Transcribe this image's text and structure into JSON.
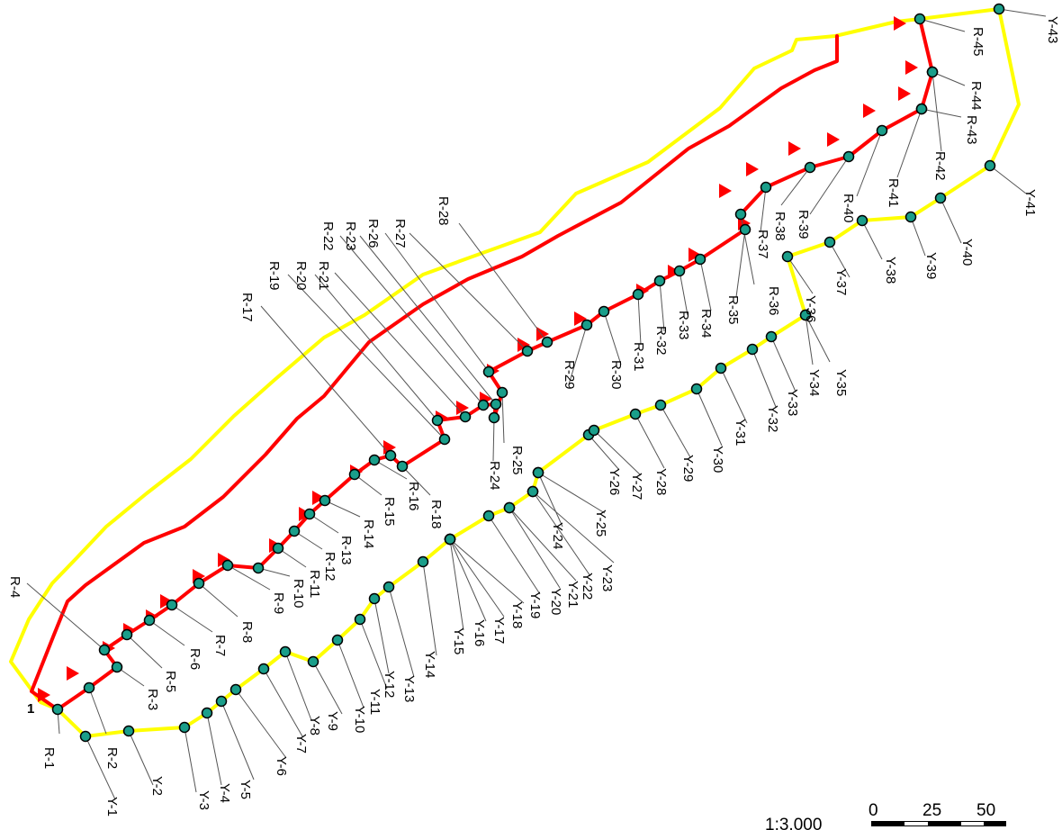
{
  "map": {
    "start_label": "1",
    "scale": {
      "ratio_text": "1:3,000",
      "ticks": [
        "0",
        "25",
        "50"
      ]
    },
    "colors": {
      "yellow_route": "#ffff00",
      "red_route": "#ff0000",
      "station": "#1a9e8a",
      "leader": "#555555",
      "arrow": "#ff0000"
    },
    "red_stations": [
      {
        "label": "R-1"
      },
      {
        "label": "R-2"
      },
      {
        "label": "R-3"
      },
      {
        "label": "R-4"
      },
      {
        "label": "R-5"
      },
      {
        "label": "R-6"
      },
      {
        "label": "R-7"
      },
      {
        "label": "R-8"
      },
      {
        "label": "R-9"
      },
      {
        "label": "R-10"
      },
      {
        "label": "R-11"
      },
      {
        "label": "R-12"
      },
      {
        "label": "R-13"
      },
      {
        "label": "R-14"
      },
      {
        "label": "R-15"
      },
      {
        "label": "R-16"
      },
      {
        "label": "R-17"
      },
      {
        "label": "R-18"
      },
      {
        "label": "R-19"
      },
      {
        "label": "R-20"
      },
      {
        "label": "R-21"
      },
      {
        "label": "R-22"
      },
      {
        "label": "R-23"
      },
      {
        "label": "R-24"
      },
      {
        "label": "R-25"
      },
      {
        "label": "R-26"
      },
      {
        "label": "R-27"
      },
      {
        "label": "R-28"
      },
      {
        "label": "R-29"
      },
      {
        "label": "R-30"
      },
      {
        "label": "R-31"
      },
      {
        "label": "R-32"
      },
      {
        "label": "R-33"
      },
      {
        "label": "R-34"
      },
      {
        "label": "R-35"
      },
      {
        "label": "R-36"
      },
      {
        "label": "R-37"
      },
      {
        "label": "R-38"
      },
      {
        "label": "R-39"
      },
      {
        "label": "R-40"
      },
      {
        "label": "R-41"
      },
      {
        "label": "R-42"
      },
      {
        "label": "R-43"
      },
      {
        "label": "R-44"
      },
      {
        "label": "R-45"
      }
    ],
    "yellow_stations": [
      {
        "label": "Y-1"
      },
      {
        "label": "Y-2"
      },
      {
        "label": "Y-3"
      },
      {
        "label": "Y-4"
      },
      {
        "label": "Y-5"
      },
      {
        "label": "Y-6"
      },
      {
        "label": "Y-7"
      },
      {
        "label": "Y-8"
      },
      {
        "label": "Y-9"
      },
      {
        "label": "Y-10"
      },
      {
        "label": "Y-11"
      },
      {
        "label": "Y-12"
      },
      {
        "label": "Y-13"
      },
      {
        "label": "Y-14"
      },
      {
        "label": "Y-15"
      },
      {
        "label": "Y-16"
      },
      {
        "label": "Y-17"
      },
      {
        "label": "Y-18"
      },
      {
        "label": "Y-19"
      },
      {
        "label": "Y-20"
      },
      {
        "label": "Y-21"
      },
      {
        "label": "Y-22"
      },
      {
        "label": "Y-23"
      },
      {
        "label": "Y-24"
      },
      {
        "label": "Y-25"
      },
      {
        "label": "Y-26"
      },
      {
        "label": "Y-27"
      },
      {
        "label": "Y-28"
      },
      {
        "label": "Y-29"
      },
      {
        "label": "Y-30"
      },
      {
        "label": "Y-31"
      },
      {
        "label": "Y-32"
      },
      {
        "label": "Y-33"
      },
      {
        "label": "Y-34"
      },
      {
        "label": "Y-35"
      },
      {
        "label": "Y-36"
      },
      {
        "label": "Y-37"
      },
      {
        "label": "Y-38"
      },
      {
        "label": "Y-39"
      },
      {
        "label": "Y-40"
      },
      {
        "label": "Y-41"
      },
      {
        "label": "Y-43"
      }
    ]
  }
}
